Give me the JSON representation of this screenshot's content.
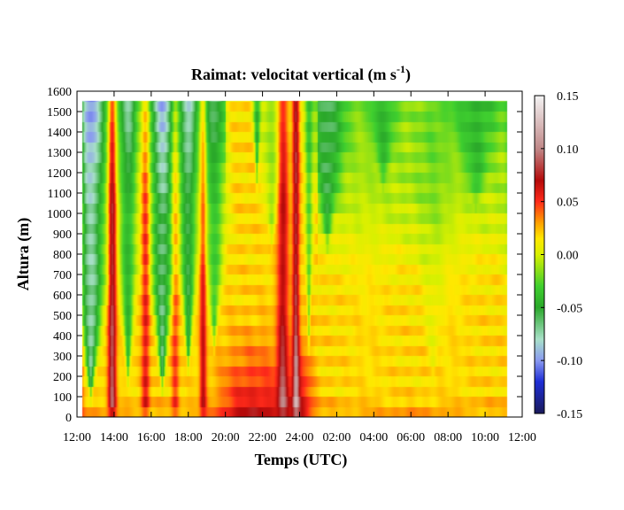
{
  "chart_data": {
    "type": "heatmap",
    "title": {
      "main": "Raimat: velocitat vertical (m s",
      "sup": "-1",
      "close": ")"
    },
    "xlabel": "Temps (UTC)",
    "ylabel": "Altura (m)",
    "x_ticks": [
      "12:00",
      "14:00",
      "16:00",
      "18:00",
      "20:00",
      "22:00",
      "24:00",
      "02:00",
      "04:00",
      "06:00",
      "08:00",
      "10:00",
      "12:00"
    ],
    "y_ticks": [
      "0",
      "100",
      "200",
      "300",
      "400",
      "500",
      "600",
      "700",
      "800",
      "900",
      "1000",
      "1100",
      "1200",
      "1300",
      "1400",
      "1500",
      "1600"
    ],
    "ylim": [
      0,
      1600
    ],
    "xlim_hours": [
      0,
      24
    ],
    "colorbar": {
      "ticks": [
        "0.15",
        "0.10",
        "0.05",
        "0.00",
        "-0.05",
        "-0.10",
        "-0.15"
      ],
      "range": [
        -0.15,
        0.15
      ],
      "stops": [
        {
          "v": -0.15,
          "color": "#1a1a5a"
        },
        {
          "v": -0.12,
          "color": "#1e2ed6"
        },
        {
          "v": -0.1,
          "color": "#8a9af0"
        },
        {
          "v": -0.08,
          "color": "#a8e0c8"
        },
        {
          "v": -0.05,
          "color": "#2aa82a"
        },
        {
          "v": -0.03,
          "color": "#3fcf2f"
        },
        {
          "v": 0.0,
          "color": "#d8f000"
        },
        {
          "v": 0.015,
          "color": "#ffe800"
        },
        {
          "v": 0.03,
          "color": "#ffa000"
        },
        {
          "v": 0.05,
          "color": "#ff2a1a"
        },
        {
          "v": 0.07,
          "color": "#b40a0a"
        },
        {
          "v": 0.1,
          "color": "#c08888"
        },
        {
          "v": 0.15,
          "color": "#f4f4f4"
        }
      ]
    },
    "data_top_m": 1550,
    "features": {
      "plumes": [
        {
          "t": 0.75,
          "base_m": 60,
          "width_h": 0.9,
          "amp": -0.09
        },
        {
          "t": 2.75,
          "base_m": 130,
          "width_h": 0.55,
          "amp": -0.06
        },
        {
          "t": 4.6,
          "base_m": 100,
          "width_h": 0.7,
          "amp": -0.08
        },
        {
          "t": 6.0,
          "base_m": 200,
          "width_h": 0.55,
          "amp": -0.07
        },
        {
          "t": 7.4,
          "base_m": 300,
          "width_h": 0.7,
          "amp": -0.05
        },
        {
          "t": 12.5,
          "base_m": 300,
          "width_h": 0.25,
          "amp": -0.04
        },
        {
          "t": 9.7,
          "base_m": 1100,
          "width_h": 0.35,
          "amp": -0.05
        },
        {
          "t": 10.5,
          "base_m": 800,
          "width_h": 0.9,
          "amp": -0.03
        },
        {
          "t": 13.5,
          "base_m": 800,
          "width_h": 1.2,
          "amp": -0.045
        },
        {
          "t": 16.5,
          "base_m": 1100,
          "width_h": 1.5,
          "amp": -0.03
        },
        {
          "t": 21.5,
          "base_m": 1000,
          "width_h": 2.0,
          "amp": -0.03
        },
        {
          "t": 23.6,
          "base_m": 150,
          "width_h": 0.4,
          "amp": -0.05
        },
        {
          "t": 19.2,
          "base_m": 150,
          "width_h": 1.0,
          "amp": -0.01
        }
      ],
      "updrafts": [
        {
          "t": 1.9,
          "amp": 0.07,
          "width_h": 0.22
        },
        {
          "t": 3.7,
          "amp": 0.04,
          "width_h": 0.22
        },
        {
          "t": 5.3,
          "amp": 0.03,
          "width_h": 0.2
        },
        {
          "t": 6.8,
          "amp": 0.045,
          "width_h": 0.18
        },
        {
          "t": 11.1,
          "amp": 0.05,
          "width_h": 0.3
        },
        {
          "t": 11.8,
          "amp": 0.06,
          "width_h": 0.18
        },
        {
          "t": 0.15,
          "amp": 0.03,
          "width_h": 0.2
        }
      ],
      "surface_warm": [
        {
          "t": 10.2,
          "width_h": 1.6,
          "amp": 0.035
        },
        {
          "t": 12.1,
          "width_h": 0.6,
          "amp": 0.035
        },
        {
          "t": 8.5,
          "width_h": 1.2,
          "amp": 0.02
        }
      ]
    }
  }
}
